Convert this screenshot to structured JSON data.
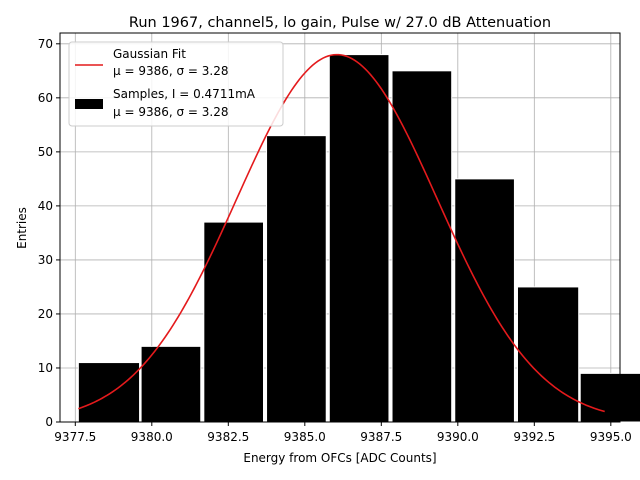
{
  "chart_data": {
    "type": "bar",
    "title": "Run 1967, channel5, lo gain, Pulse w/ 27.0 dB Attenuation",
    "xlabel": "Energy from OFCs [ADC Counts]",
    "ylabel": "Entries",
    "xlim": [
      9377.0,
      9395.3
    ],
    "ylim": [
      0,
      72
    ],
    "xticks": [
      9377.5,
      9380.0,
      9382.5,
      9385.0,
      9387.5,
      9390.0,
      9392.5,
      9395.0
    ],
    "xtick_labels": [
      "9377.5",
      "9380.0",
      "9382.5",
      "9385.0",
      "9387.5",
      "9390.0",
      "9392.5",
      "9395.0"
    ],
    "yticks": [
      0,
      10,
      20,
      30,
      40,
      50,
      60,
      70
    ],
    "ytick_labels": [
      "0",
      "10",
      "20",
      "30",
      "40",
      "50",
      "60",
      "70"
    ],
    "grid": true,
    "legend_position": "top-left",
    "bin_edges": [
      9377.6,
      9379.65,
      9381.7,
      9383.75,
      9385.8,
      9387.85,
      9389.9,
      9391.95,
      9394.0
    ],
    "bins": [
      {
        "x0": 9377.6,
        "x1": 9379.6,
        "value": 11
      },
      {
        "x0": 9379.65,
        "x1": 9381.6,
        "value": 14
      },
      {
        "x0": 9381.7,
        "x1": 9383.65,
        "value": 37
      },
      {
        "x0": 9383.75,
        "x1": 9385.7,
        "value": 53
      },
      {
        "x0": 9385.8,
        "x1": 9387.75,
        "value": 68
      },
      {
        "x0": 9387.85,
        "x1": 9389.8,
        "value": 65
      },
      {
        "x0": 9389.9,
        "x1": 9391.85,
        "value": 45
      },
      {
        "x0": 9391.95,
        "x1": 9393.95,
        "value": 25
      },
      {
        "x0": 9394.0,
        "x1": 9396.0,
        "value": 9
      }
    ],
    "series": [
      {
        "name": "Gaussian Fit",
        "name_line2": "μ = 9386, σ = 3.28",
        "kind": "line",
        "color": "#e41a1c",
        "mu": 9386.05,
        "sigma": 3.28,
        "amplitude": 68,
        "x_range": [
          9377.6,
          9394.8
        ]
      },
      {
        "name": "Samples, I = 0.4711mA",
        "name_line2": "μ = 9386, σ = 3.28",
        "kind": "bar",
        "color": "#000000"
      }
    ]
  }
}
